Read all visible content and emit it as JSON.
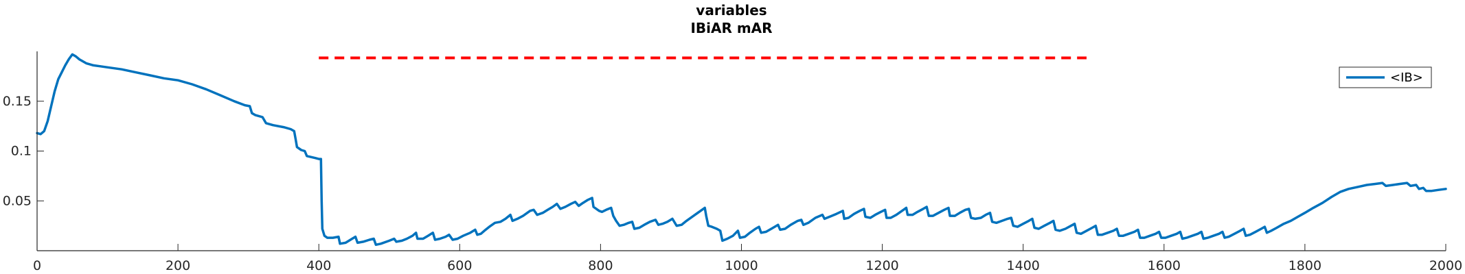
{
  "chart_data": {
    "type": "line",
    "title": [
      "variables",
      "IBiAR mAR"
    ],
    "xlabel": "",
    "ylabel": "",
    "xlim": [
      0,
      2000
    ],
    "ylim": [
      0,
      0.2
    ],
    "xticks": [
      0,
      200,
      400,
      600,
      800,
      1000,
      1200,
      1400,
      1600,
      1800,
      2000
    ],
    "xtick_labels": [
      "0",
      "200",
      "400",
      "600",
      "800",
      "1000",
      "1200",
      "1400",
      "1600",
      "1800",
      "2000"
    ],
    "yticks": [
      0.05,
      0.1,
      0.15
    ],
    "ytick_labels": [
      "0.05",
      "0.1",
      "0.15"
    ],
    "grid": false,
    "legend": {
      "position": "top-right",
      "entries": [
        "<IB>"
      ]
    },
    "reference_line": {
      "style": "dashed",
      "color": "#ff0000",
      "x_start": 400,
      "x_end": 1490,
      "y": 0.1935
    },
    "series": [
      {
        "name": "<IB>",
        "color": "#0072bd",
        "points": [
          [
            0,
            0.118
          ],
          [
            5,
            0.117
          ],
          [
            10,
            0.12
          ],
          [
            15,
            0.13
          ],
          [
            20,
            0.145
          ],
          [
            25,
            0.16
          ],
          [
            30,
            0.172
          ],
          [
            35,
            0.179
          ],
          [
            40,
            0.186
          ],
          [
            45,
            0.192
          ],
          [
            50,
            0.197
          ],
          [
            55,
            0.195
          ],
          [
            60,
            0.192
          ],
          [
            70,
            0.188
          ],
          [
            80,
            0.186
          ],
          [
            90,
            0.185
          ],
          [
            100,
            0.184
          ],
          [
            120,
            0.182
          ],
          [
            140,
            0.179
          ],
          [
            160,
            0.176
          ],
          [
            180,
            0.173
          ],
          [
            200,
            0.171
          ],
          [
            220,
            0.167
          ],
          [
            240,
            0.162
          ],
          [
            260,
            0.156
          ],
          [
            280,
            0.15
          ],
          [
            295,
            0.146
          ],
          [
            302,
            0.145
          ],
          [
            305,
            0.138
          ],
          [
            310,
            0.136
          ],
          [
            320,
            0.134
          ],
          [
            325,
            0.128
          ],
          [
            335,
            0.126
          ],
          [
            350,
            0.124
          ],
          [
            360,
            0.122
          ],
          [
            365,
            0.12
          ],
          [
            367,
            0.112
          ],
          [
            369,
            0.104
          ],
          [
            375,
            0.101
          ],
          [
            380,
            0.1
          ],
          [
            383,
            0.095
          ],
          [
            395,
            0.093
          ],
          [
            400,
            0.092
          ],
          [
            403,
            0.092
          ],
          [
            404,
            0.05
          ],
          [
            405,
            0.022
          ],
          [
            408,
            0.015
          ],
          [
            412,
            0.013
          ],
          [
            420,
            0.013
          ],
          [
            428,
            0.014
          ],
          [
            430,
            0.007
          ],
          [
            438,
            0.008
          ],
          [
            445,
            0.011
          ],
          [
            452,
            0.014
          ],
          [
            455,
            0.008
          ],
          [
            463,
            0.009
          ],
          [
            472,
            0.011
          ],
          [
            478,
            0.012
          ],
          [
            481,
            0.006
          ],
          [
            488,
            0.007
          ],
          [
            500,
            0.01
          ],
          [
            507,
            0.012
          ],
          [
            510,
            0.009
          ],
          [
            518,
            0.01
          ],
          [
            525,
            0.012
          ],
          [
            533,
            0.015
          ],
          [
            538,
            0.018
          ],
          [
            540,
            0.012
          ],
          [
            548,
            0.012
          ],
          [
            555,
            0.015
          ],
          [
            562,
            0.018
          ],
          [
            565,
            0.011
          ],
          [
            572,
            0.012
          ],
          [
            580,
            0.014
          ],
          [
            585,
            0.016
          ],
          [
            590,
            0.011
          ],
          [
            597,
            0.012
          ],
          [
            605,
            0.015
          ],
          [
            615,
            0.018
          ],
          [
            622,
            0.021
          ],
          [
            625,
            0.016
          ],
          [
            630,
            0.017
          ],
          [
            635,
            0.02
          ],
          [
            642,
            0.024
          ],
          [
            650,
            0.028
          ],
          [
            658,
            0.029
          ],
          [
            665,
            0.032
          ],
          [
            672,
            0.036
          ],
          [
            675,
            0.03
          ],
          [
            682,
            0.032
          ],
          [
            690,
            0.035
          ],
          [
            700,
            0.04
          ],
          [
            705,
            0.041
          ],
          [
            710,
            0.036
          ],
          [
            718,
            0.038
          ],
          [
            725,
            0.041
          ],
          [
            732,
            0.044
          ],
          [
            738,
            0.047
          ],
          [
            743,
            0.042
          ],
          [
            750,
            0.044
          ],
          [
            758,
            0.047
          ],
          [
            764,
            0.049
          ],
          [
            769,
            0.045
          ],
          [
            775,
            0.048
          ],
          [
            782,
            0.051
          ],
          [
            788,
            0.053
          ],
          [
            790,
            0.044
          ],
          [
            798,
            0.04
          ],
          [
            802,
            0.039
          ],
          [
            808,
            0.041
          ],
          [
            815,
            0.043
          ],
          [
            818,
            0.035
          ],
          [
            822,
            0.03
          ],
          [
            827,
            0.025
          ],
          [
            833,
            0.026
          ],
          [
            840,
            0.028
          ],
          [
            845,
            0.029
          ],
          [
            848,
            0.022
          ],
          [
            855,
            0.023
          ],
          [
            862,
            0.026
          ],
          [
            870,
            0.029
          ],
          [
            878,
            0.031
          ],
          [
            882,
            0.026
          ],
          [
            888,
            0.027
          ],
          [
            895,
            0.029
          ],
          [
            902,
            0.032
          ],
          [
            908,
            0.025
          ],
          [
            915,
            0.026
          ],
          [
            922,
            0.03
          ],
          [
            932,
            0.035
          ],
          [
            942,
            0.04
          ],
          [
            948,
            0.043
          ],
          [
            950,
            0.035
          ],
          [
            953,
            0.025
          ],
          [
            958,
            0.024
          ],
          [
            965,
            0.022
          ],
          [
            970,
            0.02
          ],
          [
            973,
            0.01
          ],
          [
            980,
            0.012
          ],
          [
            988,
            0.015
          ],
          [
            995,
            0.02
          ],
          [
            998,
            0.013
          ],
          [
            1005,
            0.014
          ],
          [
            1012,
            0.018
          ],
          [
            1020,
            0.022
          ],
          [
            1025,
            0.024
          ],
          [
            1028,
            0.018
          ],
          [
            1035,
            0.019
          ],
          [
            1045,
            0.023
          ],
          [
            1052,
            0.026
          ],
          [
            1055,
            0.021
          ],
          [
            1062,
            0.022
          ],
          [
            1070,
            0.026
          ],
          [
            1080,
            0.03
          ],
          [
            1085,
            0.031
          ],
          [
            1088,
            0.026
          ],
          [
            1095,
            0.028
          ],
          [
            1105,
            0.033
          ],
          [
            1115,
            0.036
          ],
          [
            1118,
            0.032
          ],
          [
            1125,
            0.034
          ],
          [
            1135,
            0.037
          ],
          [
            1144,
            0.04
          ],
          [
            1146,
            0.032
          ],
          [
            1152,
            0.033
          ],
          [
            1160,
            0.037
          ],
          [
            1168,
            0.04
          ],
          [
            1174,
            0.042
          ],
          [
            1176,
            0.034
          ],
          [
            1183,
            0.033
          ],
          [
            1190,
            0.036
          ],
          [
            1198,
            0.039
          ],
          [
            1204,
            0.041
          ],
          [
            1206,
            0.033
          ],
          [
            1212,
            0.033
          ],
          [
            1220,
            0.036
          ],
          [
            1228,
            0.04
          ],
          [
            1234,
            0.043
          ],
          [
            1236,
            0.036
          ],
          [
            1243,
            0.036
          ],
          [
            1250,
            0.039
          ],
          [
            1258,
            0.042
          ],
          [
            1263,
            0.044
          ],
          [
            1266,
            0.035
          ],
          [
            1272,
            0.035
          ],
          [
            1280,
            0.038
          ],
          [
            1288,
            0.041
          ],
          [
            1294,
            0.043
          ],
          [
            1296,
            0.035
          ],
          [
            1303,
            0.035
          ],
          [
            1310,
            0.038
          ],
          [
            1318,
            0.041
          ],
          [
            1323,
            0.042
          ],
          [
            1326,
            0.033
          ],
          [
            1332,
            0.032
          ],
          [
            1340,
            0.033
          ],
          [
            1347,
            0.036
          ],
          [
            1353,
            0.038
          ],
          [
            1356,
            0.029
          ],
          [
            1362,
            0.028
          ],
          [
            1370,
            0.03
          ],
          [
            1378,
            0.032
          ],
          [
            1383,
            0.033
          ],
          [
            1386,
            0.025
          ],
          [
            1392,
            0.024
          ],
          [
            1400,
            0.027
          ],
          [
            1408,
            0.03
          ],
          [
            1413,
            0.032
          ],
          [
            1416,
            0.023
          ],
          [
            1422,
            0.022
          ],
          [
            1430,
            0.025
          ],
          [
            1438,
            0.028
          ],
          [
            1443,
            0.03
          ],
          [
            1446,
            0.021
          ],
          [
            1452,
            0.02
          ],
          [
            1460,
            0.022
          ],
          [
            1468,
            0.025
          ],
          [
            1473,
            0.027
          ],
          [
            1476,
            0.018
          ],
          [
            1482,
            0.017
          ],
          [
            1490,
            0.02
          ],
          [
            1498,
            0.023
          ],
          [
            1503,
            0.025
          ],
          [
            1506,
            0.016
          ],
          [
            1512,
            0.016
          ],
          [
            1520,
            0.018
          ],
          [
            1528,
            0.02
          ],
          [
            1533,
            0.022
          ],
          [
            1536,
            0.015
          ],
          [
            1542,
            0.015
          ],
          [
            1550,
            0.017
          ],
          [
            1558,
            0.019
          ],
          [
            1563,
            0.021
          ],
          [
            1566,
            0.013
          ],
          [
            1572,
            0.013
          ],
          [
            1580,
            0.015
          ],
          [
            1588,
            0.017
          ],
          [
            1593,
            0.019
          ],
          [
            1596,
            0.013
          ],
          [
            1602,
            0.013
          ],
          [
            1610,
            0.015
          ],
          [
            1618,
            0.017
          ],
          [
            1623,
            0.019
          ],
          [
            1626,
            0.012
          ],
          [
            1632,
            0.013
          ],
          [
            1640,
            0.015
          ],
          [
            1648,
            0.017
          ],
          [
            1653,
            0.019
          ],
          [
            1656,
            0.012
          ],
          [
            1662,
            0.013
          ],
          [
            1670,
            0.015
          ],
          [
            1678,
            0.017
          ],
          [
            1683,
            0.019
          ],
          [
            1686,
            0.013
          ],
          [
            1692,
            0.014
          ],
          [
            1700,
            0.017
          ],
          [
            1708,
            0.02
          ],
          [
            1713,
            0.022
          ],
          [
            1716,
            0.015
          ],
          [
            1722,
            0.016
          ],
          [
            1730,
            0.019
          ],
          [
            1738,
            0.022
          ],
          [
            1743,
            0.024
          ],
          [
            1746,
            0.018
          ],
          [
            1752,
            0.02
          ],
          [
            1760,
            0.023
          ],
          [
            1770,
            0.027
          ],
          [
            1780,
            0.03
          ],
          [
            1790,
            0.034
          ],
          [
            1800,
            0.038
          ],
          [
            1812,
            0.043
          ],
          [
            1825,
            0.048
          ],
          [
            1838,
            0.054
          ],
          [
            1850,
            0.059
          ],
          [
            1862,
            0.062
          ],
          [
            1875,
            0.064
          ],
          [
            1888,
            0.066
          ],
          [
            1900,
            0.067
          ],
          [
            1910,
            0.068
          ],
          [
            1915,
            0.065
          ],
          [
            1925,
            0.066
          ],
          [
            1935,
            0.067
          ],
          [
            1945,
            0.068
          ],
          [
            1950,
            0.065
          ],
          [
            1958,
            0.066
          ],
          [
            1962,
            0.062
          ],
          [
            1968,
            0.063
          ],
          [
            1972,
            0.06
          ],
          [
            1980,
            0.06
          ],
          [
            1990,
            0.061
          ],
          [
            2000,
            0.062
          ]
        ]
      }
    ]
  }
}
